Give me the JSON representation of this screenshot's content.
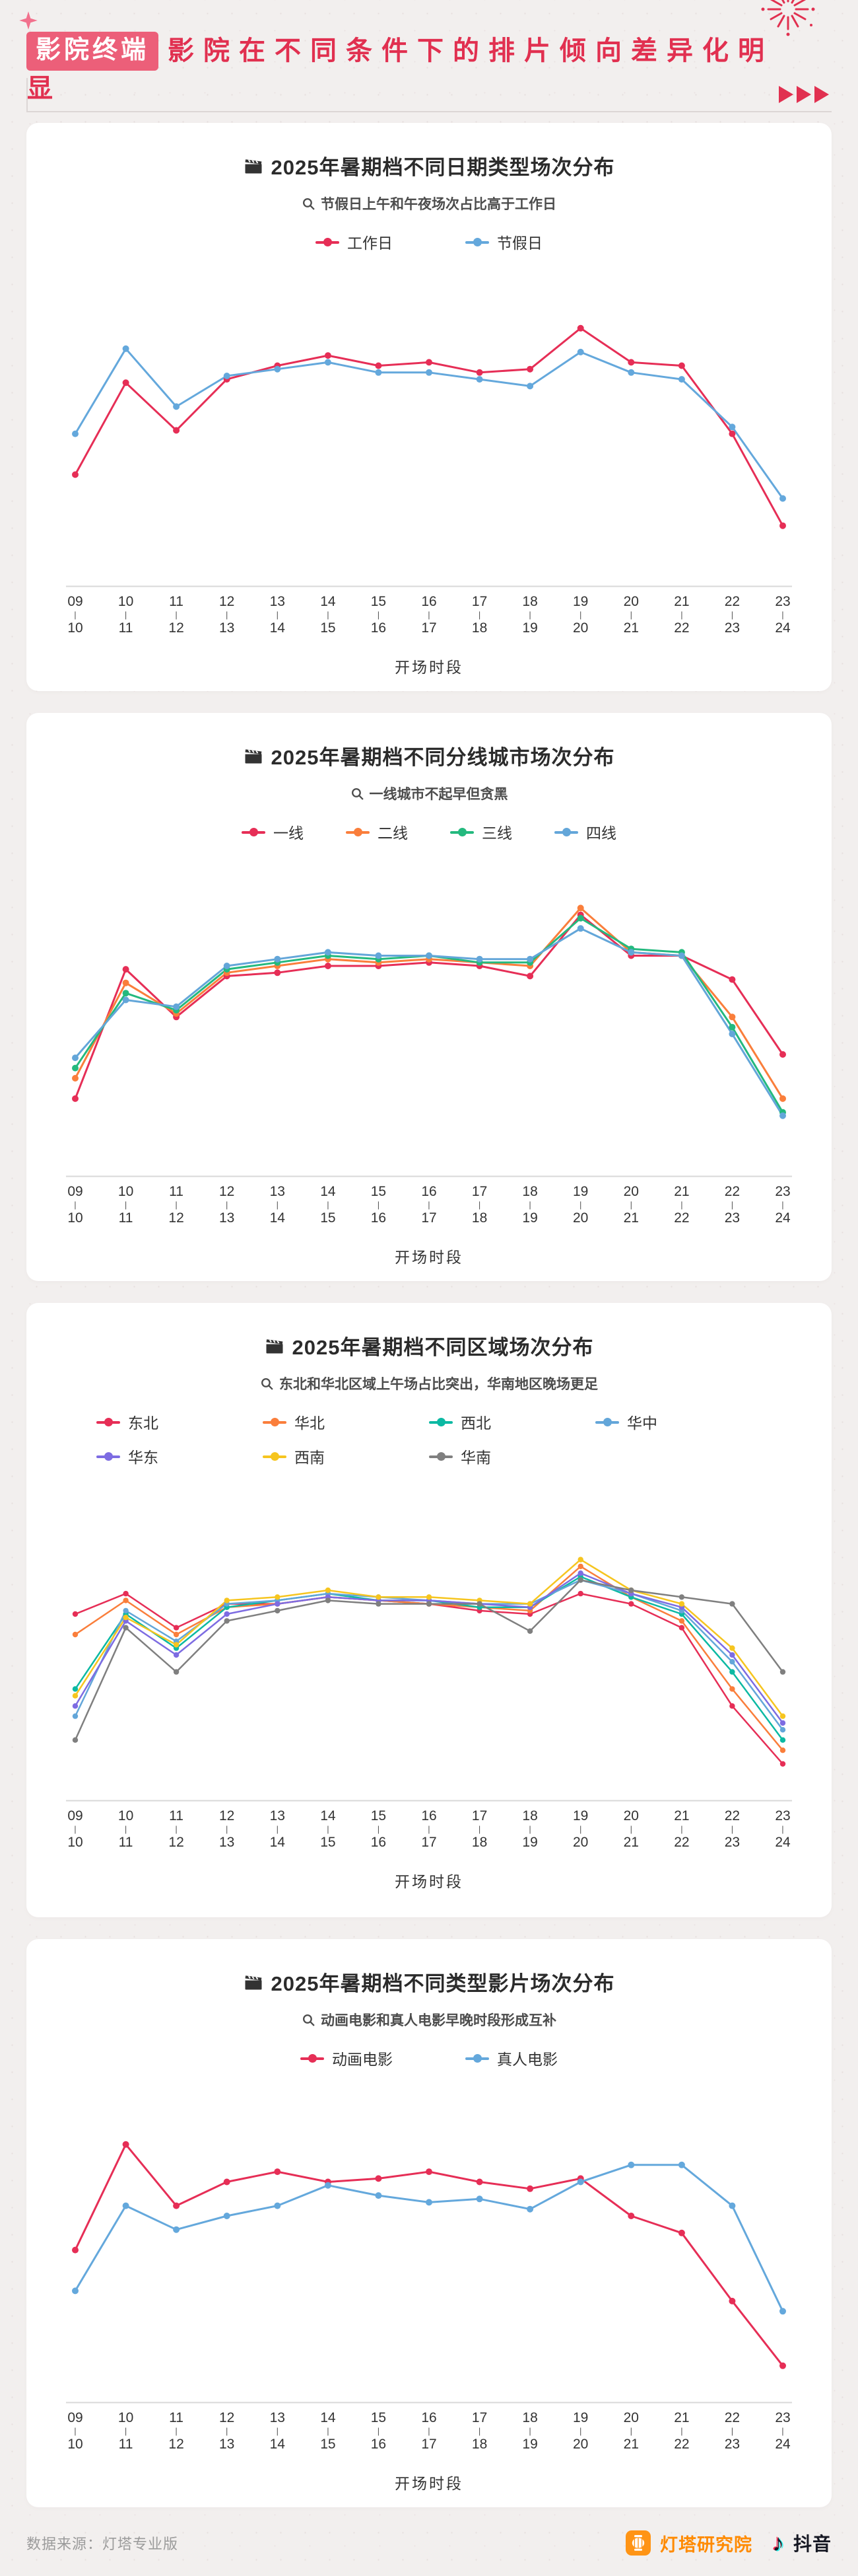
{
  "header": {
    "badge": "影院终端",
    "title": "影院在不同条件下的排片倾向差异化明显",
    "badge_color": "#ec5f79",
    "title_color": "#e13050",
    "icons": [
      "sparkle-icon",
      "firework-icon",
      "triple-arrow-icon"
    ]
  },
  "chart_data": [
    {
      "type": "line",
      "title": "2025年暑期档不同日期类型场次分布",
      "title_icon": "clapper-icon",
      "subtitle": "节假日上午和午夜场次占比高于工作日",
      "subtitle_icon": "magnifier-icon",
      "xlabel": "开场时段",
      "categories": [
        "09-10",
        "10-11",
        "11-12",
        "12-13",
        "13-14",
        "14-15",
        "15-16",
        "16-17",
        "17-18",
        "18-19",
        "19-20",
        "20-21",
        "21-22",
        "22-23",
        "23-24"
      ],
      "ylim": [
        0,
        85
      ],
      "grid": false,
      "legend_position": "top",
      "series": [
        {
          "name": "工作日",
          "color": "#e62e56",
          "values": [
            30,
            57,
            43,
            58,
            62,
            65,
            62,
            63,
            60,
            61,
            73,
            63,
            62,
            42,
            15
          ]
        },
        {
          "name": "节假日",
          "color": "#64a8dc",
          "values": [
            42,
            67,
            50,
            59,
            61,
            63,
            60,
            60,
            58,
            56,
            66,
            60,
            58,
            44,
            23
          ]
        }
      ]
    },
    {
      "type": "line",
      "title": "2025年暑期档不同分线城市场次分布",
      "title_icon": "clapper-icon",
      "subtitle": "一线城市不起早但贪黑",
      "subtitle_icon": "magnifier-icon",
      "xlabel": "开场时段",
      "categories": [
        "09-10",
        "10-11",
        "11-12",
        "12-13",
        "13-14",
        "14-15",
        "15-16",
        "16-17",
        "17-18",
        "18-19",
        "19-20",
        "20-21",
        "21-22",
        "22-23",
        "23-24"
      ],
      "ylim": [
        0,
        85
      ],
      "grid": false,
      "legend_position": "top",
      "series": [
        {
          "name": "一线",
          "color": "#e62e56",
          "values": [
            20,
            58,
            44,
            56,
            57,
            59,
            59,
            60,
            59,
            56,
            74,
            62,
            62,
            55,
            33
          ]
        },
        {
          "name": "二线",
          "color": "#fa7e3b",
          "values": [
            26,
            54,
            45,
            57,
            59,
            61,
            60,
            61,
            60,
            59,
            76,
            63,
            62,
            44,
            20
          ]
        },
        {
          "name": "三线",
          "color": "#24b97e",
          "values": [
            29,
            51,
            46,
            58,
            60,
            62,
            61,
            62,
            60,
            60,
            73,
            64,
            63,
            41,
            16
          ]
        },
        {
          "name": "四线",
          "color": "#63a6d9",
          "values": [
            32,
            49,
            47,
            59,
            61,
            63,
            62,
            62,
            61,
            61,
            70,
            63,
            62,
            39,
            15
          ]
        }
      ]
    },
    {
      "type": "line",
      "title": "2025年暑期档不同区域场次分布",
      "title_icon": "clapper-icon",
      "subtitle": "东北和华北区域上午场占比突出，华南地区晚场更足",
      "subtitle_icon": "magnifier-icon",
      "xlabel": "开场时段",
      "categories": [
        "09-10",
        "10-11",
        "11-12",
        "12-13",
        "13-14",
        "14-15",
        "15-16",
        "16-17",
        "17-18",
        "18-19",
        "19-20",
        "20-21",
        "21-22",
        "22-23",
        "23-24"
      ],
      "ylim": [
        0,
        85
      ],
      "grid": false,
      "legend_position": "top",
      "series": [
        {
          "name": "东北",
          "color": "#e62e56",
          "values": [
            52,
            58,
            48,
            55,
            55,
            57,
            56,
            55,
            53,
            52,
            58,
            55,
            48,
            25,
            8
          ]
        },
        {
          "name": "华北",
          "color": "#fa7e3b",
          "values": [
            46,
            56,
            46,
            54,
            55,
            57,
            56,
            55,
            54,
            53,
            66,
            57,
            50,
            30,
            12
          ]
        },
        {
          "name": "西北",
          "color": "#0cb9a3",
          "values": [
            30,
            52,
            42,
            54,
            56,
            58,
            56,
            56,
            54,
            54,
            63,
            57,
            52,
            35,
            15
          ]
        },
        {
          "name": "华中",
          "color": "#63a6d9",
          "values": [
            22,
            53,
            44,
            55,
            56,
            58,
            57,
            56,
            55,
            55,
            62,
            58,
            53,
            38,
            18
          ]
        },
        {
          "name": "华东",
          "color": "#7d6ce2",
          "values": [
            25,
            50,
            40,
            52,
            55,
            57,
            56,
            56,
            55,
            54,
            64,
            58,
            54,
            40,
            20
          ]
        },
        {
          "name": "西南",
          "color": "#f6c51f",
          "values": [
            28,
            51,
            43,
            56,
            57,
            59,
            57,
            57,
            56,
            55,
            68,
            59,
            55,
            42,
            22
          ]
        },
        {
          "name": "华南",
          "color": "#7f7f7f",
          "values": [
            15,
            48,
            35,
            50,
            53,
            56,
            55,
            55,
            55,
            47,
            62,
            59,
            57,
            55,
            35
          ]
        }
      ]
    },
    {
      "type": "line",
      "title": "2025年暑期档不同类型影片场次分布",
      "title_icon": "clapper-icon",
      "subtitle": "动画电影和真人电影早晚时段形成互补",
      "subtitle_icon": "magnifier-icon",
      "xlabel": "开场时段",
      "categories": [
        "09-10",
        "10-11",
        "11-12",
        "12-13",
        "13-14",
        "14-15",
        "15-16",
        "16-17",
        "17-18",
        "18-19",
        "19-20",
        "20-21",
        "21-22",
        "22-23",
        "23-24"
      ],
      "ylim": [
        0,
        85
      ],
      "grid": false,
      "legend_position": "top",
      "series": [
        {
          "name": "动画电影",
          "color": "#e62e56",
          "values": [
            42,
            73,
            55,
            62,
            65,
            62,
            63,
            65,
            62,
            60,
            63,
            52,
            47,
            27,
            8
          ]
        },
        {
          "name": "真人电影",
          "color": "#64a8dc",
          "values": [
            30,
            55,
            48,
            52,
            55,
            61,
            58,
            56,
            57,
            54,
            62,
            67,
            67,
            55,
            24
          ]
        }
      ]
    }
  ],
  "footer": {
    "source": "数据来源：灯塔专业版",
    "brands": [
      {
        "label": "灯塔研究院",
        "icon": "dengta-lantern-icon",
        "color": "#ff8a00"
      },
      {
        "label": "抖音",
        "icon": "douyin-note-icon",
        "color": "#161823"
      }
    ]
  }
}
